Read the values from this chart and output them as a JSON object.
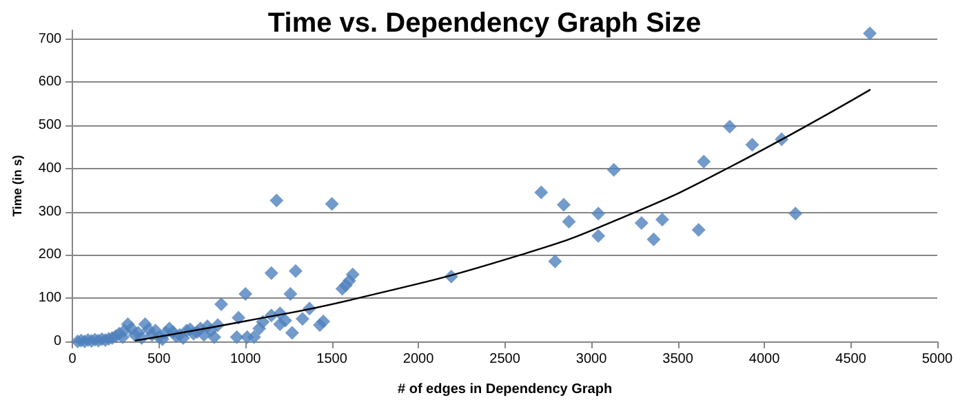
{
  "chart_data": {
    "type": "scatter",
    "title": "Time vs. Dependency Graph Size",
    "xlabel": "# of edges in Dependency Graph",
    "ylabel": "Time (in s)",
    "xlim": [
      0,
      5000
    ],
    "xticks": [
      0,
      500,
      1000,
      1500,
      2000,
      2500,
      3000,
      3500,
      4000,
      4500,
      5000
    ],
    "ylim": [
      0,
      720
    ],
    "yticks": [
      0,
      100,
      200,
      300,
      400,
      500,
      600,
      700
    ],
    "grid": "y",
    "marker": "diamond",
    "series": [
      {
        "color": "#4f81bd",
        "x": [
          30,
          50,
          70,
          90,
          110,
          130,
          150,
          170,
          190,
          210,
          230,
          250,
          270,
          290,
          300,
          320,
          340,
          360,
          380,
          400,
          420,
          440,
          460,
          480,
          500,
          520,
          540,
          560,
          580,
          600,
          620,
          640,
          660,
          680,
          700,
          720,
          740,
          760,
          780,
          800,
          820,
          840,
          860,
          960,
          950,
          1000,
          1010,
          1050,
          1080,
          1100,
          1150,
          1150,
          1180,
          1200,
          1200,
          1230,
          1260,
          1270,
          1290,
          1330,
          1370,
          1430,
          1450,
          1500,
          1560,
          1580,
          1600,
          1620,
          2190,
          2710,
          2790,
          2840,
          2870,
          3040,
          3040,
          3130,
          3290,
          3360,
          3410,
          3620,
          3650,
          3800,
          3930,
          4100,
          4180,
          4610
        ],
        "values": [
          0,
          2,
          0,
          3,
          1,
          4,
          2,
          5,
          3,
          6,
          8,
          12,
          18,
          10,
          25,
          40,
          30,
          15,
          20,
          8,
          40,
          28,
          15,
          25,
          10,
          5,
          20,
          30,
          22,
          12,
          15,
          8,
          25,
          28,
          18,
          22,
          30,
          15,
          35,
          25,
          10,
          38,
          86,
          55,
          10,
          110,
          10,
          10,
          30,
          45,
          158,
          60,
          326,
          40,
          65,
          48,
          110,
          20,
          163,
          52,
          76,
          38,
          46,
          318,
          122,
          130,
          140,
          155,
          150,
          345,
          185,
          316,
          277,
          296,
          244,
          397,
          274,
          236,
          282,
          258,
          416,
          497,
          455,
          468,
          296,
          713
        ]
      },
      {
        "type": "line",
        "color": "#000000",
        "marker": "none",
        "x": [
          365,
          1000,
          1640,
          2590,
          3200,
          3808,
          4610
        ],
        "values": [
          2,
          47,
          99,
          200,
          290,
          405,
          582
        ]
      }
    ]
  }
}
